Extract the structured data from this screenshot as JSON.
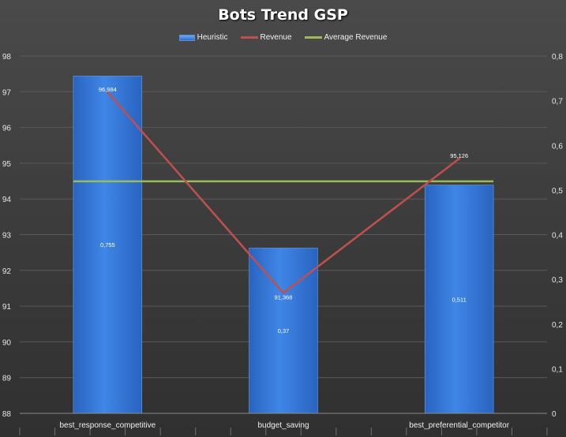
{
  "chart_data": {
    "type": "bar",
    "title": "Bots Trend GSP",
    "categories": [
      "best_response_competitive",
      "budget_saving",
      "best_preferential_competitor"
    ],
    "series": [
      {
        "name": "Heuristic",
        "kind": "bar",
        "axis": "secondary",
        "values": [
          0.755,
          0.37,
          0.511
        ],
        "labels": [
          "0,755",
          "0,37",
          "0,511"
        ],
        "color": "#3b7de0"
      },
      {
        "name": "Revenue",
        "kind": "line",
        "axis": "primary",
        "values": [
          96.984,
          91.368,
          95.126
        ],
        "labels": [
          "96,984",
          "91,368",
          "95,126"
        ],
        "color": "#c0504d"
      },
      {
        "name": "Average Revenue",
        "kind": "line",
        "axis": "primary",
        "values": [
          94.493,
          94.493,
          94.493
        ],
        "color": "#9bbb59"
      }
    ],
    "y_primary": {
      "min": 88,
      "max": 98,
      "ticks": [
        "88",
        "89",
        "90",
        "91",
        "92",
        "93",
        "94",
        "95",
        "96",
        "97",
        "98"
      ]
    },
    "y_secondary": {
      "min": 0,
      "max": 0.8,
      "ticks": [
        "0",
        "0,1",
        "0,2",
        "0,3",
        "0,4",
        "0,5",
        "0,6",
        "0,7",
        "0,8"
      ]
    },
    "grid": true,
    "legend_position": "top"
  }
}
